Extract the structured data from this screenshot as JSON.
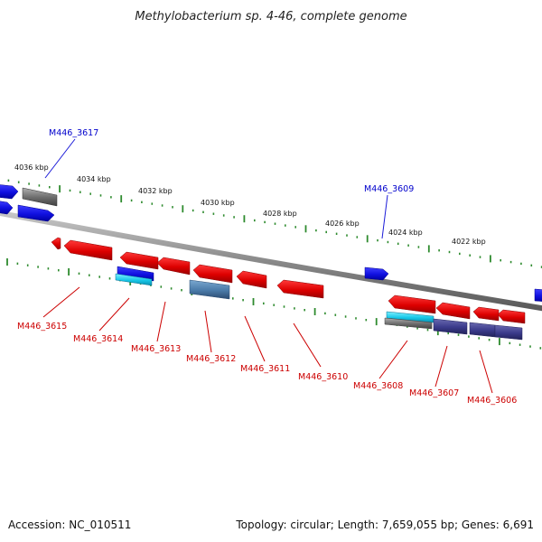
{
  "title": "Methylobacterium sp. 4-46, complete genome",
  "footer": {
    "accession": "Accession: NC_010511",
    "topology": "Topology: circular; Length: 7,659,055 bp; Genes: 6,691"
  },
  "colors": {
    "backbone": "#8a8a8a",
    "tick_major": "#2e8b2e",
    "tick_minor": "#2e8b2e",
    "gene_forward_label": "#0000cc",
    "gene_reverse_label": "#cc0000",
    "gene_red": "#e01010",
    "gene_blue": "#1a1ad8",
    "gene_gray": "#707070",
    "gene_navy": "#3a3a8a",
    "gene_steel": "#4a7aa8",
    "gene_cyan": "#18c8e8"
  },
  "tick_labels": [
    "4036 kbp",
    "4034 kbp",
    "4032 kbp",
    "4030 kbp",
    "4028 kbp",
    "4026 kbp",
    "4024 kbp",
    "4022 kbp"
  ],
  "gene_labels_forward": [
    "M446_3617",
    "M446_3609"
  ],
  "gene_labels_reverse": [
    "M446_3615",
    "M446_3614",
    "M446_3613",
    "M446_3612",
    "M446_3611",
    "M446_3610",
    "M446_3608",
    "M446_3607",
    "M446_3606"
  ]
}
